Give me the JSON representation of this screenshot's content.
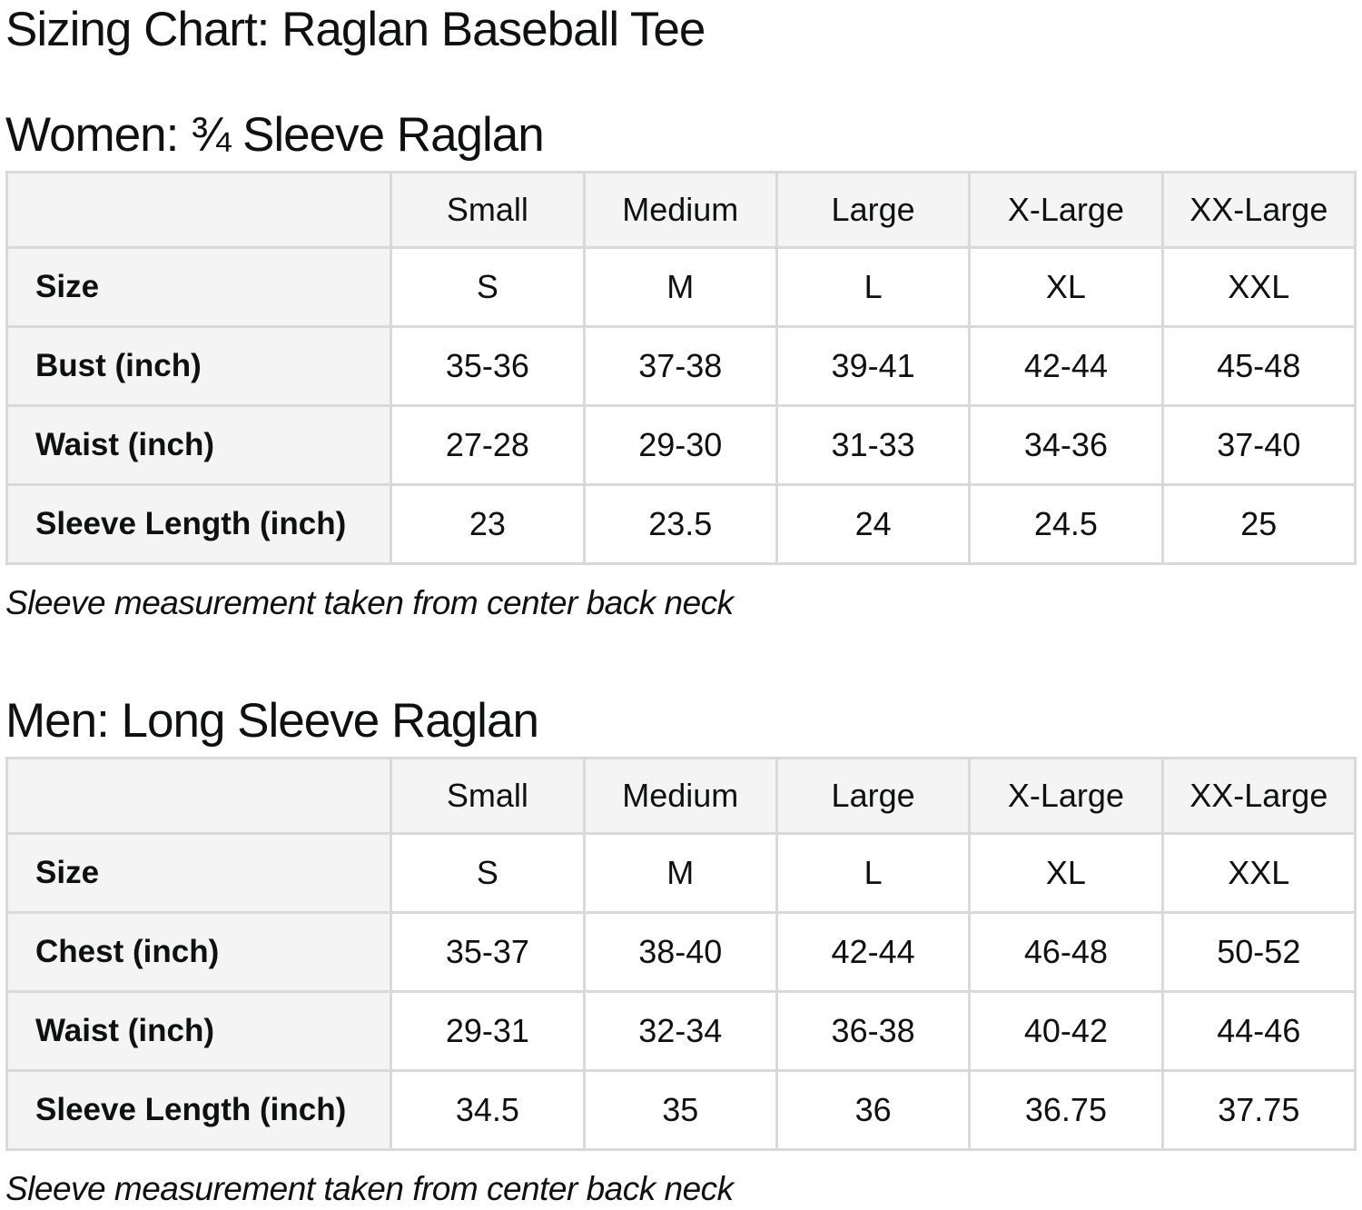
{
  "page": {
    "title": "Sizing Chart: Raglan Baseball Tee"
  },
  "colors": {
    "header_bg": "#f4f4f4",
    "border": "#d9d9d9",
    "text": "#0f1111",
    "page_bg": "#ffffff"
  },
  "sections": [
    {
      "heading": "Women: ¾ Sleeve Raglan",
      "note": "Sleeve measurement taken from center back neck",
      "table": {
        "column_headers": [
          "Small",
          "Medium",
          "Large",
          "X-Large",
          "XX-Large"
        ],
        "rows": [
          {
            "label": "Size",
            "values": [
              "S",
              "M",
              "L",
              "XL",
              "XXL"
            ]
          },
          {
            "label": "Bust (inch)",
            "values": [
              "35-36",
              "37-38",
              "39-41",
              "42-44",
              "45-48"
            ]
          },
          {
            "label": "Waist (inch)",
            "values": [
              "27-28",
              "29-30",
              "31-33",
              "34-36",
              "37-40"
            ]
          },
          {
            "label": "Sleeve Length (inch)",
            "values": [
              "23",
              "23.5",
              "24",
              "24.5",
              "25"
            ]
          }
        ]
      }
    },
    {
      "heading": "Men: Long Sleeve Raglan",
      "note": "Sleeve measurement taken from center back neck",
      "table": {
        "column_headers": [
          "Small",
          "Medium",
          "Large",
          "X-Large",
          "XX-Large"
        ],
        "rows": [
          {
            "label": "Size",
            "values": [
              "S",
              "M",
              "L",
              "XL",
              "XXL"
            ]
          },
          {
            "label": "Chest (inch)",
            "values": [
              "35-37",
              "38-40",
              "42-44",
              "46-48",
              "50-52"
            ]
          },
          {
            "label": "Waist (inch)",
            "values": [
              "29-31",
              "32-34",
              "36-38",
              "40-42",
              "44-46"
            ]
          },
          {
            "label": "Sleeve Length (inch)",
            "values": [
              "34.5",
              "35",
              "36",
              "36.75",
              "37.75"
            ]
          }
        ]
      }
    }
  ]
}
